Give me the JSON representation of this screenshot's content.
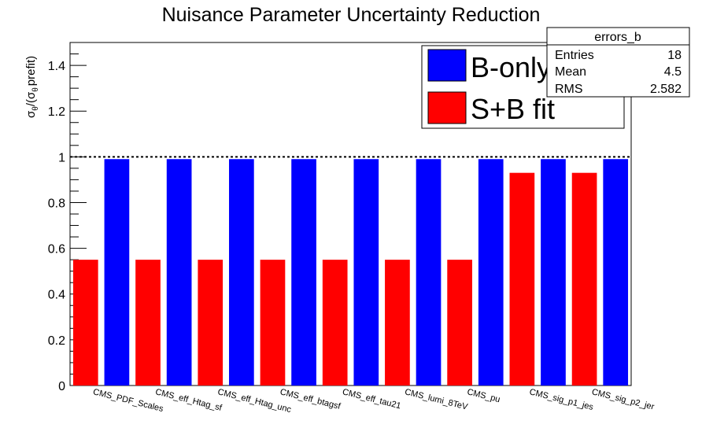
{
  "chart_data": {
    "type": "bar",
    "title": "Nuisance Parameter Uncertainty Reduction",
    "ylabel": {
      "sigma": "σ",
      "theta": "θ",
      "open": "/(σ",
      "prefit": "prefit)"
    },
    "ylim": [
      0,
      1.5
    ],
    "yticks": [
      "0",
      "0.2",
      "0.4",
      "0.6",
      "0.8",
      "1",
      "1.2",
      "1.4"
    ],
    "reference_line": 1,
    "categories": [
      "CMS_PDF_Scales",
      "CMS_eff_Htag_sf",
      "CMS_eff_Htag_unc",
      "CMS_eff_btagsf",
      "CMS_eff_tau21",
      "CMS_lumi_8TeV",
      "CMS_pu",
      "CMS_sig_p1_jes",
      "CMS_sig_p2_jer"
    ],
    "series": [
      {
        "name": "S+B fit",
        "color": "#ff0000",
        "values": [
          0.55,
          0.55,
          0.55,
          0.55,
          0.55,
          0.55,
          0.55,
          0.93,
          0.93
        ]
      },
      {
        "name": "B-only",
        "color": "#0000ff",
        "values": [
          0.99,
          0.99,
          0.99,
          0.99,
          0.99,
          0.99,
          0.99,
          0.99,
          0.99
        ]
      }
    ],
    "legend": {
      "placement": "top-right",
      "items": [
        "B-only",
        "S+B fit"
      ]
    },
    "stats_box": {
      "name": "errors_b",
      "rows": [
        {
          "label": "Entries",
          "value": "18"
        },
        {
          "label": "Mean",
          "value": "4.5"
        },
        {
          "label": "RMS",
          "value": "2.582"
        }
      ]
    }
  }
}
